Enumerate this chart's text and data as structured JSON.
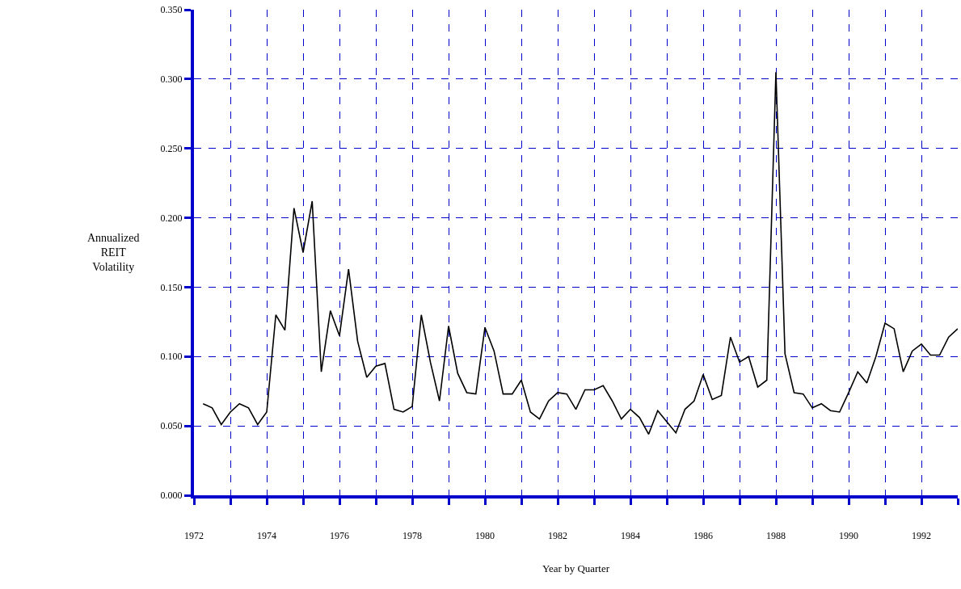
{
  "chart_data": {
    "type": "line",
    "xlabel": "Year by Quarter",
    "ylabel": "Annualized\nREIT\nVolatility",
    "x": [
      1972.25,
      1972.5,
      1972.75,
      1973.0,
      1973.25,
      1973.5,
      1973.75,
      1974.0,
      1974.25,
      1974.5,
      1974.75,
      1975.0,
      1975.25,
      1975.5,
      1975.75,
      1976.0,
      1976.25,
      1976.5,
      1976.75,
      1977.0,
      1977.25,
      1977.5,
      1977.75,
      1978.0,
      1978.25,
      1978.5,
      1978.75,
      1979.0,
      1979.25,
      1979.5,
      1979.75,
      1980.0,
      1980.25,
      1980.5,
      1980.75,
      1981.0,
      1981.25,
      1981.5,
      1981.75,
      1982.0,
      1982.25,
      1982.5,
      1982.75,
      1983.0,
      1983.25,
      1983.5,
      1983.75,
      1984.0,
      1984.25,
      1984.5,
      1984.75,
      1985.0,
      1985.25,
      1985.5,
      1985.75,
      1986.0,
      1986.25,
      1986.5,
      1986.75,
      1987.0,
      1987.25,
      1987.5,
      1987.75,
      1988.0,
      1988.25,
      1988.5,
      1988.75,
      1989.0,
      1989.25,
      1989.5,
      1989.75,
      1990.0,
      1990.25,
      1990.5,
      1990.75,
      1991.0,
      1991.25,
      1991.5,
      1991.75,
      1992.0,
      1992.25,
      1992.5,
      1992.75,
      1993.0
    ],
    "series": [
      {
        "color": "#000000",
        "values": [
          0.066,
          0.063,
          0.051,
          0.06,
          0.066,
          0.063,
          0.051,
          0.06,
          0.13,
          0.119,
          0.207,
          0.175,
          0.212,
          0.089,
          0.133,
          0.115,
          0.163,
          0.111,
          0.085,
          0.093,
          0.095,
          0.062,
          0.06,
          0.064,
          0.13,
          0.096,
          0.068,
          0.122,
          0.088,
          0.074,
          0.073,
          0.121,
          0.104,
          0.073,
          0.073,
          0.083,
          0.06,
          0.055,
          0.068,
          0.074,
          0.073,
          0.062,
          0.076,
          0.076,
          0.079,
          0.068,
          0.055,
          0.062,
          0.056,
          0.044,
          0.061,
          0.053,
          0.045,
          0.062,
          0.068,
          0.087,
          0.069,
          0.072,
          0.114,
          0.096,
          0.1,
          0.078,
          0.083,
          0.305,
          0.102,
          0.074,
          0.073,
          0.063,
          0.066,
          0.061,
          0.06,
          0.074,
          0.089,
          0.081,
          0.1,
          0.124,
          0.12,
          0.089,
          0.104,
          0.109,
          0.101,
          0.101,
          0.114,
          0.12
        ]
      }
    ],
    "xlim": [
      1972,
      1993
    ],
    "xticks": [
      1972,
      {
        "value": 1973,
        "label": null
      },
      1974,
      {
        "value": 1975,
        "label": null
      },
      1976,
      {
        "value": 1977,
        "label": null
      },
      1978,
      {
        "value": 1979,
        "label": null
      },
      1980,
      {
        "value": 1981,
        "label": null
      },
      1982,
      {
        "value": 1983,
        "label": null
      },
      1984,
      {
        "value": 1985,
        "label": null
      },
      1986,
      {
        "value": 1987,
        "label": null
      },
      1988,
      {
        "value": 1989,
        "label": null
      },
      1990,
      {
        "value": 1991,
        "label": null
      },
      1992,
      {
        "value": 1993,
        "label": null
      }
    ],
    "ylim": [
      0,
      0.35
    ],
    "yticks": [
      {
        "value": 0,
        "label": "0.000"
      },
      {
        "value": 0.05,
        "label": "0.050"
      },
      {
        "value": 0.1,
        "label": "0.100"
      },
      {
        "value": 0.15,
        "label": "0.150"
      },
      {
        "value": 0.2,
        "label": "0.200"
      },
      {
        "value": 0.25,
        "label": "0.250"
      },
      {
        "value": 0.3,
        "label": "0.300"
      },
      {
        "value": 0.35,
        "label": "0.350"
      }
    ],
    "grid": true,
    "marker": "none",
    "line_style": "solid"
  }
}
